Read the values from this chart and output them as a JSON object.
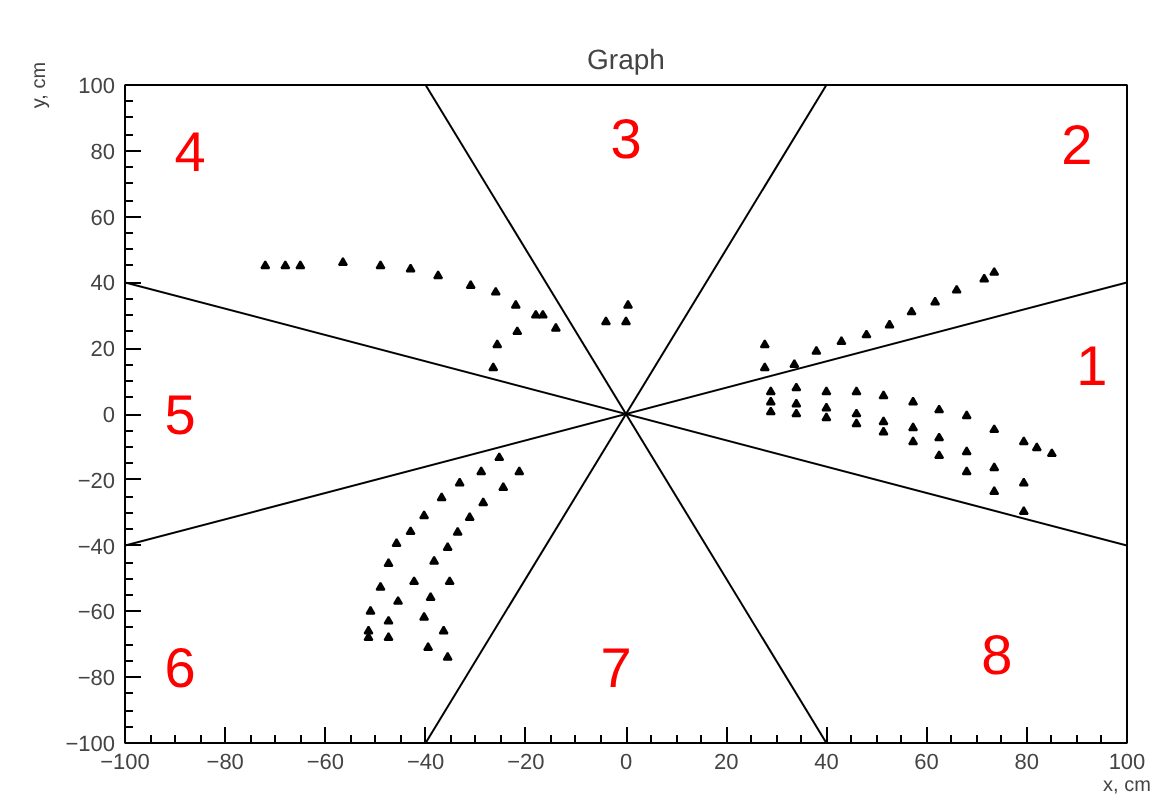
{
  "chart_data": {
    "type": "scatter",
    "title": "Graph",
    "xlabel": "x, cm",
    "ylabel": "y, cm",
    "xlim": [
      -100,
      100
    ],
    "ylim": [
      -100,
      100
    ],
    "xticks": [
      -100,
      -80,
      -60,
      -40,
      -20,
      0,
      20,
      40,
      60,
      80,
      100
    ],
    "yticks": [
      -100,
      -80,
      -60,
      -40,
      -20,
      0,
      20,
      40,
      60,
      80,
      100
    ],
    "grid": false,
    "marker": "triangle",
    "series": [
      {
        "color": "#000000",
        "x": [
          -72,
          -68,
          -65,
          -56.5,
          -49,
          -43,
          -37.5,
          -31,
          -26,
          -22,
          -18,
          -14,
          -25.7,
          -21.7,
          -16.6,
          -26.5,
          -4,
          0,
          0.4
        ],
        "values": [
          45,
          45,
          45,
          46,
          45,
          44,
          42,
          39,
          37,
          33,
          30,
          26,
          21,
          25,
          30,
          14,
          28,
          28,
          33
        ]
      },
      {
        "color": "#000000",
        "x": [
          27.7,
          27.7,
          33.6,
          38,
          43,
          48,
          52.6,
          57,
          61.7,
          66,
          71.5,
          73.5
        ],
        "values": [
          21,
          14,
          15,
          19,
          22,
          24,
          27,
          31,
          34,
          37.6,
          41,
          43
        ]
      },
      {
        "color": "#000000",
        "x": [
          28.9,
          28.9,
          28.9,
          34,
          34,
          34,
          40,
          40,
          40,
          46,
          46,
          46,
          51.4,
          51.4,
          51.4,
          57.3,
          57.3,
          57.3,
          62.5,
          62.5,
          62.5,
          68,
          68,
          68,
          73.5,
          73.5,
          73.5,
          79.4,
          79.4,
          79.4,
          82,
          85
        ],
        "values": [
          6.7,
          3.6,
          0.6,
          7.9,
          3,
          0,
          6.7,
          1.8,
          -1.2,
          6.7,
          0,
          -3,
          5.5,
          -2.4,
          -5.5,
          3.6,
          -4.2,
          -8.5,
          1.2,
          -7.3,
          -12.7,
          -0.6,
          -11.5,
          -17.6,
          -4.8,
          -16.4,
          -23.6,
          -8.5,
          -21,
          -29.7,
          -10.3,
          -12.1
        ]
      },
      {
        "color": "#000000",
        "x": [
          -25.3,
          -21.3,
          -28.9,
          -24.5,
          -28.5,
          -33.2,
          -36.8,
          -31.2,
          -33.6,
          -40.3,
          -43,
          -35.6,
          -45.8,
          -38.3,
          -47.4,
          -35.2,
          -42.3,
          -49,
          -39,
          -45.5,
          -51,
          -40.3,
          -47.4,
          -51.4,
          -36.4,
          -47.4,
          -39.5,
          -35.6,
          -51.4
        ],
        "values": [
          -13.3,
          -17.6,
          -17.6,
          -22.4,
          -27,
          -21,
          -25.5,
          -31.5,
          -36,
          -31,
          -35.8,
          -40.6,
          -39.4,
          -44.8,
          -45.5,
          -51,
          -51,
          -52.7,
          -55.8,
          -57,
          -60,
          -61.8,
          -63,
          -66,
          -66,
          -68,
          -71,
          -74,
          -68
        ]
      },
      {
        "type": "line",
        "color": "#000000",
        "marker": "none",
        "x": [
          -100,
          100
        ],
        "values": [
          40,
          -40
        ]
      },
      {
        "type": "line",
        "color": "#000000",
        "marker": "none",
        "x": [
          -100,
          100
        ],
        "values": [
          -40,
          40
        ]
      },
      {
        "type": "line",
        "color": "#000000",
        "marker": "none",
        "x": [
          -40,
          40
        ],
        "values": [
          100,
          -100
        ]
      },
      {
        "type": "line",
        "color": "#000000",
        "marker": "none",
        "x": [
          40,
          -40
        ],
        "values": [
          100,
          -100
        ]
      }
    ],
    "annotations": [
      "1",
      "2",
      "3",
      "4",
      "5",
      "6",
      "7",
      "8"
    ]
  }
}
